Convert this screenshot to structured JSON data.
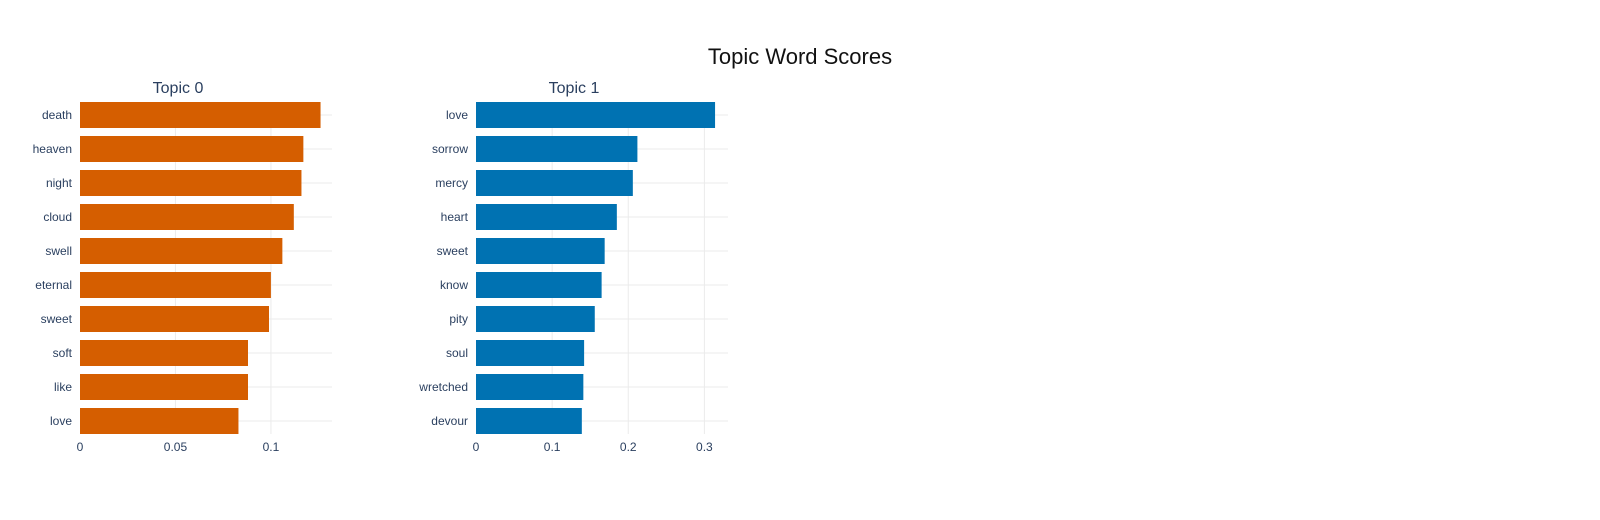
{
  "title": "Topic Word Scores",
  "chart_data": [
    {
      "type": "bar",
      "orientation": "horizontal",
      "title": "Topic 0",
      "categories": [
        "death",
        "heaven",
        "night",
        "cloud",
        "swell",
        "eternal",
        "sweet",
        "soft",
        "like",
        "love"
      ],
      "values": [
        0.126,
        0.117,
        0.116,
        0.112,
        0.106,
        0.1,
        0.099,
        0.088,
        0.088,
        0.083
      ],
      "xlim": [
        0,
        0.132
      ],
      "xticks": [
        0,
        0.05,
        0.1
      ],
      "xtick_labels": [
        "0",
        "0.05",
        "0.1"
      ],
      "color": "#D55E00",
      "grid": true
    },
    {
      "type": "bar",
      "orientation": "horizontal",
      "title": "Topic 1",
      "categories": [
        "love",
        "sorrow",
        "mercy",
        "heart",
        "sweet",
        "know",
        "pity",
        "soul",
        "wretched",
        "devour"
      ],
      "values": [
        0.314,
        0.212,
        0.206,
        0.185,
        0.169,
        0.165,
        0.156,
        0.142,
        0.141,
        0.139
      ],
      "xlim": [
        0,
        0.331
      ],
      "xticks": [
        0,
        0.1,
        0.2,
        0.3
      ],
      "xtick_labels": [
        "0",
        "0.1",
        "0.2",
        "0.3"
      ],
      "color": "#0072B2",
      "grid": true
    }
  ]
}
